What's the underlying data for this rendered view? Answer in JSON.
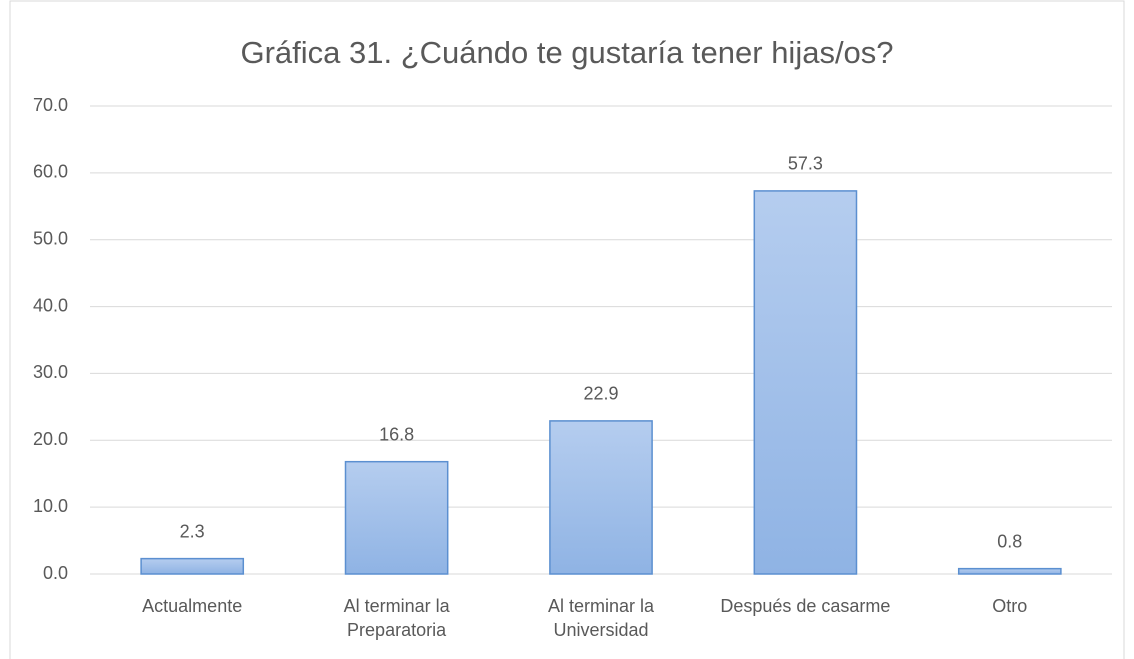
{
  "chart_data": {
    "type": "bar",
    "title": "Gráfica 31. ¿Cuándo te gustaría tener hijas/os?",
    "categories": [
      "Actualmente",
      "Al terminar la Preparatoria",
      "Al terminar la Universidad",
      "Después de casarme",
      "Otro"
    ],
    "values": [
      2.3,
      16.8,
      22.9,
      57.3,
      0.8
    ],
    "color": "#9dbde8",
    "ylim": [
      0,
      70
    ],
    "yticks": [
      {
        "value": 0,
        "label": "0.0"
      },
      {
        "value": 10,
        "label": "10.0"
      },
      {
        "value": 20,
        "label": "20.0"
      },
      {
        "value": 30,
        "label": "30.0"
      },
      {
        "value": 40,
        "label": "40.0"
      },
      {
        "value": 50,
        "label": "50.0"
      },
      {
        "value": 60,
        "label": "60.0"
      },
      {
        "value": 70,
        "label": "70.0"
      }
    ],
    "grid": true
  }
}
